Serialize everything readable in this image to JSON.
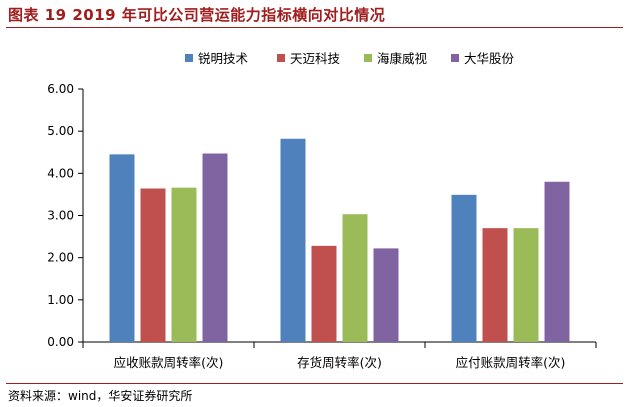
{
  "figure": {
    "title": "图表 19 2019 年可比公司营运能力指标横向对比情况",
    "source": "资料来源：wind，华安证券研究所"
  },
  "chart_data": {
    "type": "bar",
    "title": "",
    "xlabel": "",
    "ylabel": "",
    "categories": [
      "应收账款周转率(次)",
      "存货周转率(次)",
      "应付账款周转率(次)"
    ],
    "series": [
      {
        "name": "锐明技术",
        "color": "#4f81bd",
        "values": [
          4.45,
          4.82,
          3.49
        ]
      },
      {
        "name": "天迈科技",
        "color": "#c0504d",
        "values": [
          3.64,
          2.28,
          2.7
        ]
      },
      {
        "name": "海康威视",
        "color": "#9bbb59",
        "values": [
          3.66,
          3.03,
          2.7
        ]
      },
      {
        "name": "大华股份",
        "color": "#8064a2",
        "values": [
          4.47,
          2.22,
          3.8
        ]
      }
    ],
    "ylim": [
      0,
      6
    ],
    "yticks": [
      "0.00",
      "1.00",
      "2.00",
      "3.00",
      "4.00",
      "5.00",
      "6.00"
    ],
    "grid": false,
    "legend_position": "top"
  }
}
